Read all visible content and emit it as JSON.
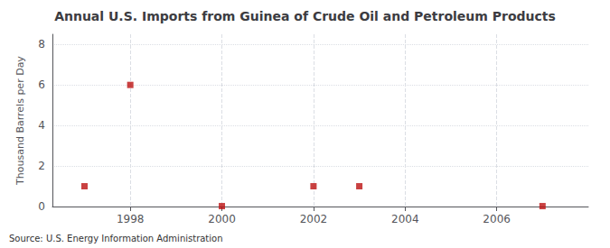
{
  "chart_data": {
    "type": "scatter",
    "title": "Annual U.S. Imports from Guinea of Crude Oil and Petroleum Products",
    "ylabel": "Thousand Barrels per Day",
    "source": "Source: U.S. Energy Information Administration",
    "x": [
      1997,
      1998,
      2000,
      2002,
      2003,
      2007
    ],
    "values": [
      1.0,
      6.0,
      0.02,
      1.0,
      1.0,
      0.02
    ],
    "color": "#bb1111",
    "marker": "square",
    "xlim": [
      1996.3,
      2008.0
    ],
    "ylim": [
      0,
      8.5
    ],
    "xticks": [
      1998,
      2000,
      2002,
      2004,
      2006
    ],
    "yticks": [
      0,
      2,
      4,
      6,
      8
    ],
    "grid": true
  }
}
